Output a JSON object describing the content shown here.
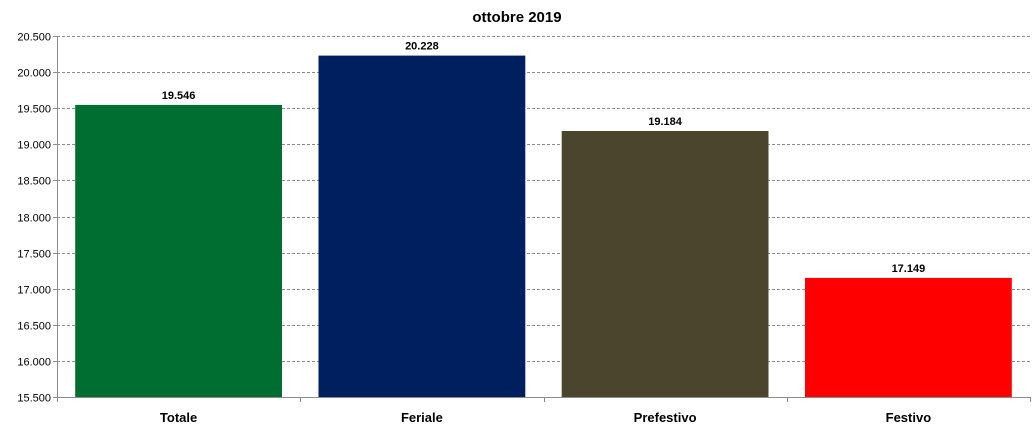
{
  "chart_data": {
    "type": "bar",
    "title": "ottobre 2019",
    "categories": [
      "Totale",
      "Feriale",
      "Prefestivo",
      "Festivo"
    ],
    "values": [
      19546,
      20228,
      19184,
      17149
    ],
    "value_labels": [
      "19.546",
      "20.228",
      "19.184",
      "17.149"
    ],
    "colors": [
      "#006e30",
      "#001f5f",
      "#4a452c",
      "#ff0000"
    ],
    "ylim": [
      15500,
      20500
    ],
    "yticks": [
      15500,
      16000,
      16500,
      17000,
      17500,
      18000,
      18500,
      19000,
      19500,
      20000,
      20500
    ],
    "ytick_labels": [
      "15.500",
      "16.000",
      "16.500",
      "17.000",
      "17.500",
      "18.000",
      "18.500",
      "19.000",
      "19.500",
      "20.000",
      "20.500"
    ],
    "grid": true,
    "legend": "none",
    "xlabel": "",
    "ylabel": ""
  }
}
